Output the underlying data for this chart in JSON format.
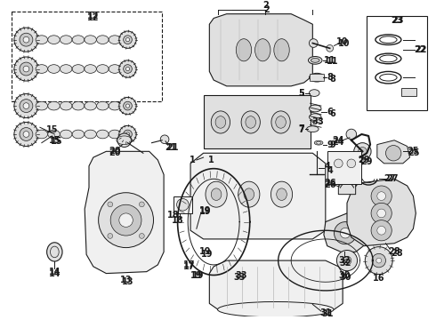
{
  "bg_color": "#ffffff",
  "line_color": "#1a1a1a",
  "fill_light": "#f0f0f0",
  "fill_mid": "#e0e0e0",
  "fill_dark": "#c8c8c8",
  "figsize": [
    4.9,
    3.6
  ],
  "dpi": 100,
  "font_size": 7.0,
  "font_weight": "bold",
  "arrow_color": "#1a1a1a"
}
